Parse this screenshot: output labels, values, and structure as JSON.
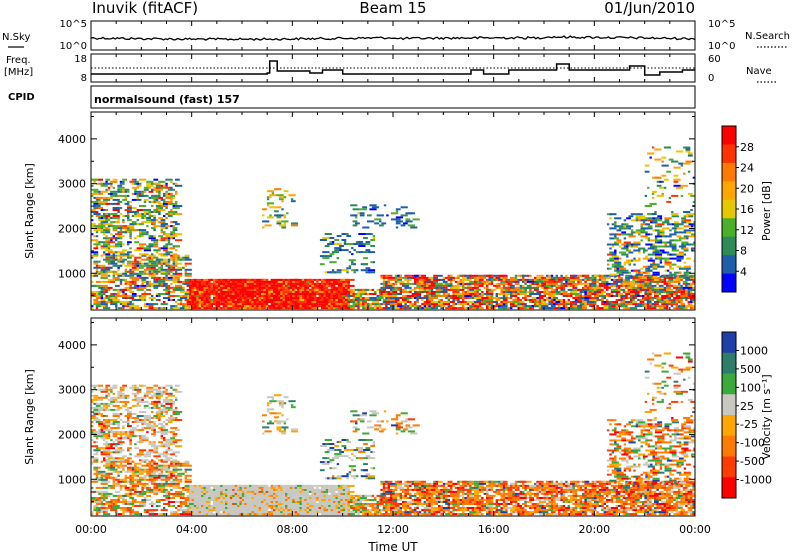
{
  "header": {
    "station": "Inuvik (fitACF)",
    "beam": "Beam 15",
    "date": "01/Jun/2010"
  },
  "top_panel": {
    "left_label": "N.Sky",
    "left_ticks": [
      "10^5",
      "10^0"
    ],
    "right_label": "N.Search",
    "right_ticks": [
      "10^5",
      "10^0"
    ]
  },
  "freq_panel": {
    "left_label_line1": "Freq.",
    "left_label_line2": "[MHz]",
    "left_ticks": [
      "18",
      "8"
    ],
    "right_label": "Nave",
    "right_ticks": [
      "60",
      "0"
    ],
    "cpid_label": "CPID",
    "mode_text": "normalsound (fast) 157"
  },
  "x_axis": {
    "label": "Time UT",
    "ticks": [
      "00:00",
      "04:00",
      "08:00",
      "12:00",
      "16:00",
      "20:00",
      "00:00"
    ]
  },
  "chart_data": [
    {
      "type": "heatmap",
      "name": "power",
      "xlabel": "Time UT",
      "ylabel": "Slant Range [km]",
      "y_ticks": [
        1000,
        2000,
        3000,
        4000
      ],
      "ylim": [
        180,
        4600
      ],
      "xlim_hours": [
        0,
        24
      ],
      "colorbar": {
        "label": "Power [dB]",
        "ticks": [
          "28",
          "24",
          "20",
          "16",
          "12",
          "8",
          "4"
        ],
        "colors": [
          "#ff0000",
          "#ff3300",
          "#ff7a00",
          "#ffa500",
          "#e6c800",
          "#4caf2a",
          "#2e8b57",
          "#1f5faa",
          "#0000ff"
        ]
      }
    },
    {
      "type": "heatmap",
      "name": "velocity",
      "xlabel": "Time UT",
      "ylabel": "Slant Range [km]",
      "y_ticks": [
        1000,
        2000,
        3000,
        4000
      ],
      "ylim": [
        180,
        4600
      ],
      "xlim_hours": [
        0,
        24
      ],
      "colorbar": {
        "label": "Velocity [m s⁻¹]",
        "ticks": [
          "1000",
          "500",
          "100",
          "25",
          "-25",
          "-100",
          "-500",
          "-1000"
        ],
        "colors": [
          "#1f3fa8",
          "#2e7d6a",
          "#3aaa3a",
          "#c8c8c0",
          "#ffa500",
          "#ff7a00",
          "#ff3c00",
          "#ff0000"
        ]
      }
    }
  ]
}
